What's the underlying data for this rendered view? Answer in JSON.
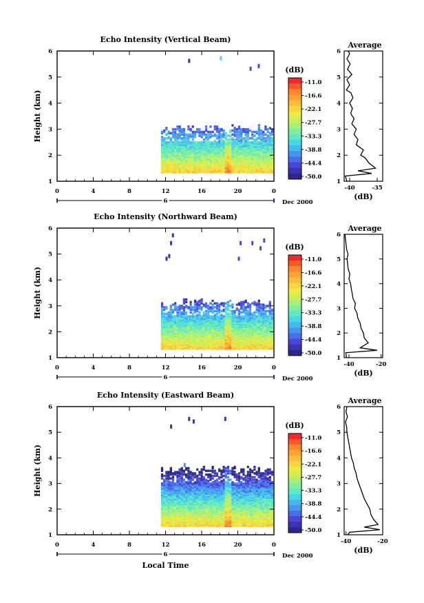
{
  "figure": {
    "x_axis_label": "Local Time",
    "date_label": "Dec 2000",
    "day_markers": [
      "6",
      "6",
      "6"
    ]
  },
  "colorbar": {
    "unit": "(dB)",
    "ticks": [
      "-11.0",
      "-16.6",
      "-22.1",
      "-27.7",
      "-33.3",
      "-38.8",
      "-44.4",
      "-50.0"
    ],
    "colors": [
      "#ef2b2b",
      "#f55a28",
      "#f98a2d",
      "#fba434",
      "#fbbd3b",
      "#f7d73f",
      "#ecea43",
      "#c9f05b",
      "#a8f07a",
      "#80eea0",
      "#5ee8c6",
      "#4ad6e6",
      "#46b8f0",
      "#4894f0",
      "#4a6de8",
      "#4a46d8",
      "#3c33b0",
      "#2c2788"
    ]
  },
  "chart_data": [
    {
      "type": "heatmap",
      "title": "Echo Intensity (Vertical Beam)",
      "xlabel": "",
      "ylabel": "Height (km)",
      "xlim": [
        0,
        24
      ],
      "ylim": [
        1,
        6
      ],
      "xticks": [
        "0",
        "4",
        "8",
        "12",
        "16",
        "20",
        "0"
      ],
      "yticks": [
        "1",
        "2",
        "3",
        "4",
        "5",
        "6"
      ],
      "color_scale_db": [
        -50.0,
        -11.0
      ],
      "data_region": {
        "x_start_hours": 11.5,
        "x_end_hours": 24,
        "height_km": [
          1.3,
          3.0
        ],
        "strongest_time_hours": 18.8
      },
      "sparse_echoes": [
        {
          "time_hours": 14.5,
          "height_km": 5.7,
          "value_db": -47
        },
        {
          "time_hours": 18.0,
          "height_km": 5.8,
          "value_db": -36
        },
        {
          "time_hours": 21.3,
          "height_km": 5.4,
          "value_db": -46
        },
        {
          "time_hours": 22.2,
          "height_km": 5.5,
          "value_db": -46
        }
      ],
      "average_profile": {
        "title": "Average",
        "xlabel": "(dB)",
        "xticks": [
          "-40",
          "-35"
        ],
        "xlim": [
          -41,
          -34
        ],
        "ylim": [
          1,
          6
        ],
        "yticks": [
          "1",
          "2",
          "3",
          "4",
          "5",
          "6"
        ],
        "height_km": [
          1.0,
          1.2,
          1.3,
          1.4,
          1.5,
          1.7,
          1.9,
          2.0,
          2.2,
          2.4,
          2.6,
          2.8,
          3.0,
          3.2,
          3.4,
          3.6,
          3.8,
          4.0,
          4.2,
          4.4,
          4.5,
          4.7,
          4.9,
          5.1,
          5.3,
          5.5,
          5.7,
          5.9,
          6.0
        ],
        "db": [
          -40.5,
          -40.8,
          -36.0,
          -38.5,
          -35.3,
          -36.5,
          -37.2,
          -38.0,
          -37.5,
          -38.8,
          -38.5,
          -39.2,
          -38.8,
          -39.6,
          -39.2,
          -39.8,
          -39.5,
          -40.0,
          -39.4,
          -39.8,
          -40.6,
          -40.0,
          -40.5,
          -39.6,
          -40.4,
          -39.9,
          -40.5,
          -40.0,
          -40.3
        ]
      }
    },
    {
      "type": "heatmap",
      "title": "Echo Intensity (Northward Beam)",
      "xlabel": "",
      "ylabel": "Height (km)",
      "xlim": [
        0,
        24
      ],
      "ylim": [
        1,
        6
      ],
      "xticks": [
        "0",
        "4",
        "8",
        "12",
        "16",
        "20",
        "0"
      ],
      "yticks": [
        "1",
        "2",
        "3",
        "4",
        "5",
        "6"
      ],
      "color_scale_db": [
        -50.0,
        -11.0
      ],
      "data_region": {
        "x_start_hours": 11.5,
        "x_end_hours": 24,
        "height_km": [
          1.3,
          3.1
        ],
        "strongest_time_hours": 18.8
      },
      "sparse_echoes": [
        {
          "time_hours": 12.3,
          "height_km": 5.0,
          "value_db": -47
        },
        {
          "time_hours": 12.0,
          "height_km": 4.9,
          "value_db": -47
        },
        {
          "time_hours": 12.5,
          "height_km": 5.5,
          "value_db": -47
        },
        {
          "time_hours": 12.7,
          "height_km": 5.8,
          "value_db": -47
        },
        {
          "time_hours": 20.2,
          "height_km": 5.5,
          "value_db": -46
        },
        {
          "time_hours": 20.0,
          "height_km": 4.9,
          "value_db": -46
        },
        {
          "time_hours": 21.5,
          "height_km": 5.5,
          "value_db": -46
        },
        {
          "time_hours": 22.4,
          "height_km": 5.3,
          "value_db": -46
        },
        {
          "time_hours": 22.8,
          "height_km": 5.6,
          "value_db": -46
        }
      ],
      "average_profile": {
        "title": "Average",
        "xlabel": "(dB)",
        "xticks": [
          "-40",
          "-20"
        ],
        "xlim": [
          -43,
          -19
        ],
        "ylim": [
          1,
          6
        ],
        "yticks": [
          "1",
          "2",
          "3",
          "4",
          "5",
          "6"
        ],
        "height_km": [
          1.0,
          1.2,
          1.3,
          1.4,
          1.6,
          1.8,
          2.0,
          2.2,
          2.4,
          2.6,
          2.8,
          3.0,
          3.2,
          3.4,
          3.6,
          3.8,
          4.0,
          4.2,
          4.4,
          4.6,
          4.8,
          5.0,
          5.2,
          5.4,
          5.6,
          5.8,
          6.0
        ],
        "db": [
          -41.5,
          -42.0,
          -22.5,
          -33.0,
          -28.0,
          -30.5,
          -31.0,
          -32.5,
          -33.0,
          -34.5,
          -35.0,
          -36.5,
          -36.0,
          -37.5,
          -38.0,
          -38.6,
          -39.0,
          -40.0,
          -39.5,
          -40.5,
          -40.8,
          -41.2,
          -40.6,
          -41.5,
          -41.8,
          -42.2,
          -42.5
        ]
      }
    },
    {
      "type": "heatmap",
      "title": "Echo Intensity (Eastward Beam)",
      "xlabel": "",
      "ylabel": "Height (km)",
      "xlim": [
        0,
        24
      ],
      "ylim": [
        1,
        6
      ],
      "xticks": [
        "0",
        "4",
        "8",
        "12",
        "16",
        "20",
        "0"
      ],
      "yticks": [
        "1",
        "2",
        "3",
        "4",
        "5",
        "6"
      ],
      "color_scale_db": [
        -50.0,
        -11.0
      ],
      "data_region": {
        "x_start_hours": 11.5,
        "x_end_hours": 24,
        "height_km": [
          1.3,
          3.5
        ],
        "strongest_time_hours": 18.8
      },
      "sparse_echoes": [
        {
          "time_hours": 12.5,
          "height_km": 5.3,
          "value_db": -47
        },
        {
          "time_hours": 14.5,
          "height_km": 5.6,
          "value_db": -47
        },
        {
          "time_hours": 15.0,
          "height_km": 5.5,
          "value_db": -47
        },
        {
          "time_hours": 18.5,
          "height_km": 5.6,
          "value_db": -47
        },
        {
          "time_hours": 14.0,
          "height_km": 3.8,
          "value_db": -40
        }
      ],
      "average_profile": {
        "title": "Average",
        "xlabel": "(dB)",
        "xticks": [
          "-40",
          "-20"
        ],
        "xlim": [
          -41,
          -20
        ],
        "ylim": [
          1,
          6
        ],
        "yticks": [
          "1",
          "2",
          "3",
          "4",
          "5",
          "6"
        ],
        "height_km": [
          1.0,
          1.1,
          1.2,
          1.3,
          1.4,
          1.6,
          1.8,
          2.0,
          2.2,
          2.4,
          2.6,
          2.8,
          3.0,
          3.2,
          3.4,
          3.6,
          3.8,
          4.0,
          4.2,
          4.4,
          4.6,
          4.8,
          5.0,
          5.2,
          5.4,
          5.6,
          5.8,
          6.0
        ],
        "db": [
          -39.0,
          -38.0,
          -21.5,
          -30.0,
          -22.5,
          -25.0,
          -26.5,
          -27.0,
          -28.5,
          -30.0,
          -31.0,
          -32.0,
          -33.0,
          -34.0,
          -34.5,
          -35.5,
          -36.0,
          -37.0,
          -37.5,
          -38.0,
          -38.5,
          -39.0,
          -39.5,
          -39.6,
          -40.3,
          -39.2,
          -40.0,
          -39.5
        ]
      }
    }
  ]
}
